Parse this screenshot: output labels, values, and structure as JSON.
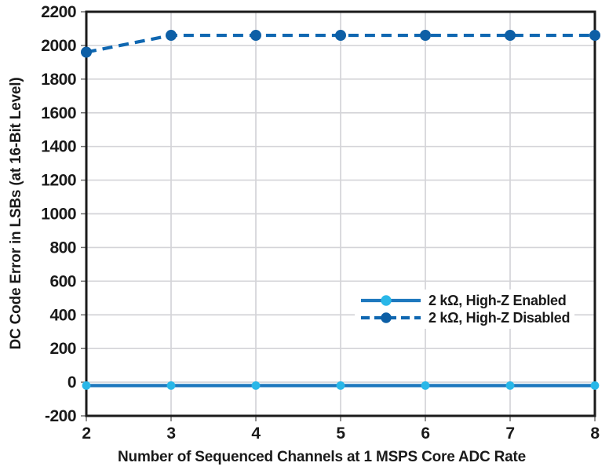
{
  "chart_data": {
    "type": "line",
    "title": "",
    "xlabel": "Number of Sequenced Channels at 1 MSPS Core ADC Rate",
    "ylabel": "DC Code Error in LSBs (at 16-Bit Level)",
    "x": [
      2,
      3,
      4,
      5,
      6,
      7,
      8
    ],
    "xlim": [
      2,
      8
    ],
    "xtick_step": 1,
    "ylim": [
      -200,
      2200
    ],
    "ytick_step": 200,
    "grid": true,
    "legend_position": "inside lower-right area",
    "series": [
      {
        "name": "2 kΩ, High-Z Enabled",
        "values": [
          -20,
          -20,
          -20,
          -20,
          -20,
          -20,
          -20
        ],
        "dash": "solid",
        "line_color": "#1E78BE",
        "marker_color": "#29B7E8"
      },
      {
        "name": "2 kΩ, High-Z Disabled",
        "values": [
          1960,
          2060,
          2060,
          2060,
          2060,
          2060,
          2060
        ],
        "dash": "dashed",
        "line_color": "#0F67B1",
        "marker_color": "#0D5FA6"
      }
    ],
    "colors": {
      "frame": "#1a1a1a",
      "grid": "#d4d4d8",
      "tick": "#707070",
      "text": "#1a1a1a",
      "background": "#ffffff"
    }
  }
}
